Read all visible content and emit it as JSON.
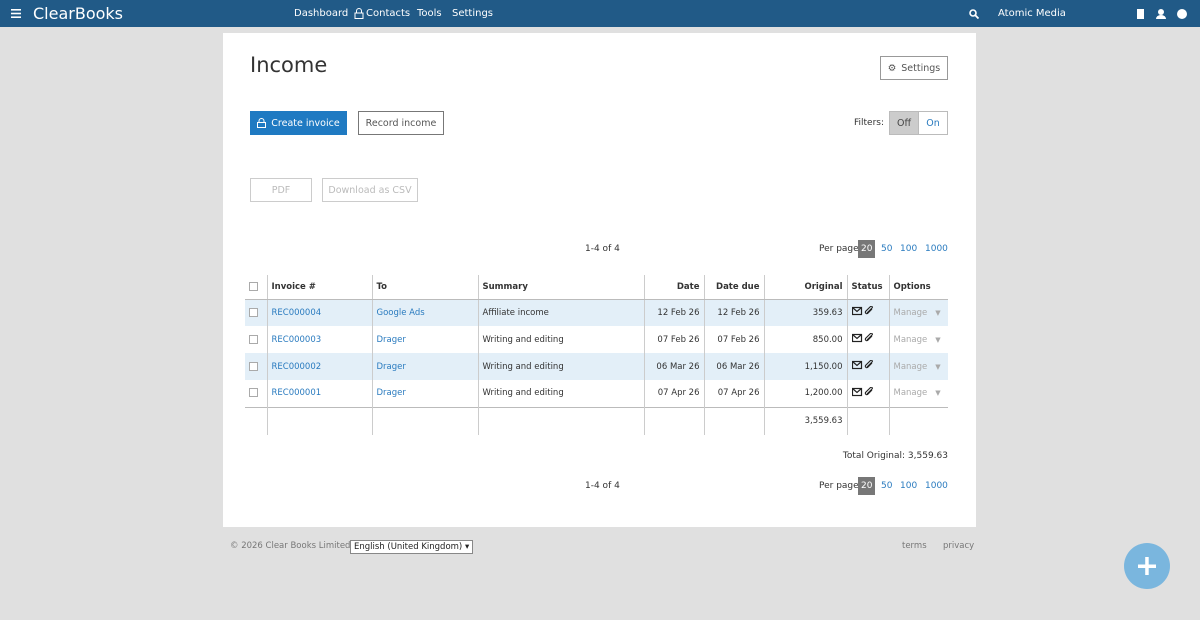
{
  "nav": {
    "brand": "ClearBooks",
    "links": [
      "Dashboard",
      "Contacts",
      "Tools",
      "Settings"
    ],
    "company": "Atomic Media"
  },
  "page": {
    "title": "Income",
    "settings_button": "Settings",
    "create_button": "Create invoice",
    "record_button": "Record income",
    "filters_label": "Filters:",
    "filter_options": [
      "Off",
      "On"
    ],
    "export_buttons": [
      "PDF",
      "Download as CSV"
    ]
  },
  "pagination": {
    "range": "1-4 of 4",
    "per_page_label": "Per page:",
    "per_page_options": [
      20,
      50,
      100,
      1000
    ]
  },
  "table": {
    "columns": [
      "Invoice #",
      "To",
      "Summary",
      "Date",
      "Date due",
      "Original",
      "Status",
      "Options"
    ],
    "rows": [
      [
        "REC000004",
        "Google Ads",
        "Affiliate income",
        "12 Feb 26",
        "12 Feb 26",
        "359.63"
      ],
      [
        "REC000003",
        "Drager",
        "Writing and editing",
        "07 Feb 26",
        "07 Feb 26",
        "850.00"
      ],
      [
        "REC000002",
        "Drager",
        "Writing and editing",
        "06 Mar 26",
        "06 Mar 26",
        "1,150.00"
      ],
      [
        "REC000001",
        "Drager",
        "Writing and editing",
        "07 Apr 26",
        "07 Apr 26",
        "1,200.00"
      ]
    ],
    "manage_label": "Manage",
    "total": "3,559.63"
  },
  "total_label": "Total Original: 3,559.63",
  "footer": {
    "copyright": "© 2026 Clear Books Limited",
    "language": "English (United Kingdom)",
    "links": [
      "terms",
      "privacy"
    ]
  }
}
